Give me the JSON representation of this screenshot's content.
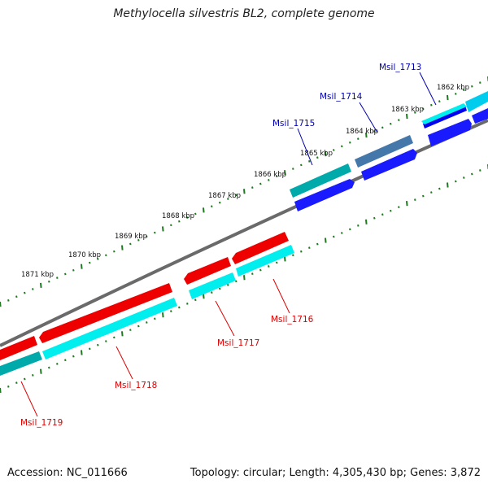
{
  "title": "Methylocella silvestris BL2, complete genome",
  "accession": "Accession: NC_011666",
  "summary": "Topology: circular; Length: 4,305,430 bp; Genes: 3,872",
  "colors": {
    "backbone": "#888888",
    "forward_gene": "#0000ee",
    "forward_cds": "#1a1aff",
    "reverse_gene": "#ee0000",
    "cds_cyan": "#00eeee",
    "cds_teal": "#00aaaa",
    "cds_steel": "#4477aa",
    "tick": "#227722",
    "forward_label": "#0000aa",
    "reverse_label": "#dd0000"
  },
  "ticks": [
    "1862 kbp",
    "1863 kbp",
    "1864 kbp",
    "1865 kbp",
    "1866 kbp",
    "1867 kbp",
    "1868 kbp",
    "1869 kbp",
    "1870 kbp",
    "1871 kbp"
  ],
  "forward_genes": [
    {
      "name": "Msil_1713"
    },
    {
      "name": "Msil_1714"
    },
    {
      "name": "Msil_1715"
    }
  ],
  "reverse_genes": [
    {
      "name": "Msil_1716"
    },
    {
      "name": "Msil_1717"
    },
    {
      "name": "Msil_1718"
    },
    {
      "name": "Msil_1719"
    }
  ]
}
